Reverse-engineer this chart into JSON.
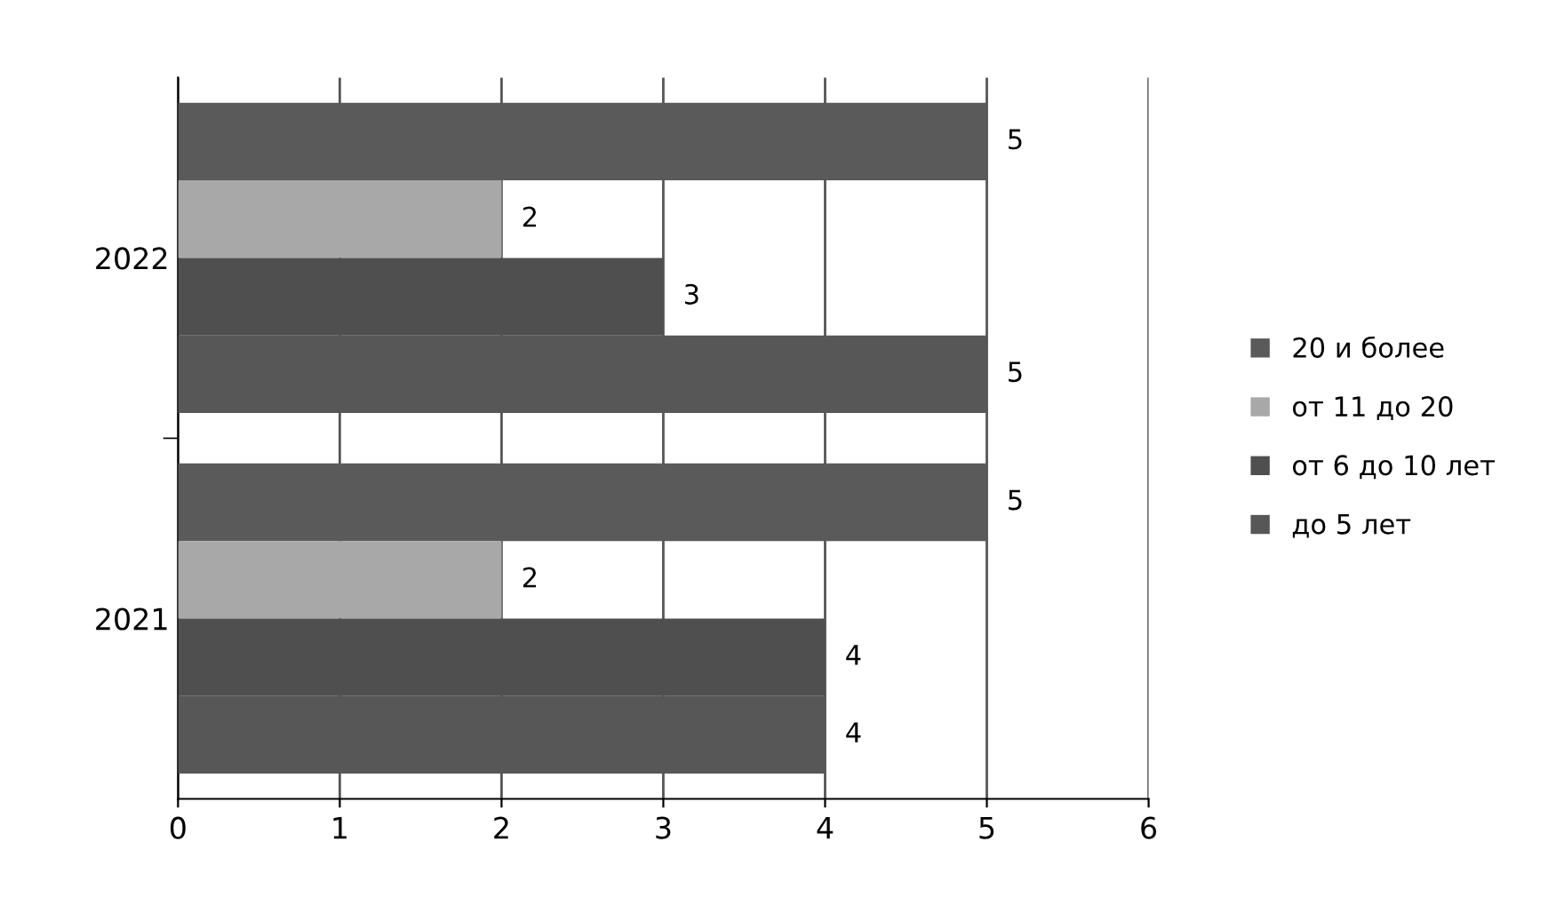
{
  "chart_data": {
    "type": "bar",
    "orientation": "horizontal",
    "categories": [
      "2022",
      "2021"
    ],
    "series": [
      {
        "name": "20 и более",
        "color": "#5a5a5a",
        "values": [
          5,
          5
        ]
      },
      {
        "name": "от 11 до 20",
        "color": "#a8a8a8",
        "values": [
          2,
          2
        ]
      },
      {
        "name": "от 6 до 10 лет",
        "color": "#4f4f4f",
        "values": [
          3,
          4
        ]
      },
      {
        "name": "до 5 лет",
        "color": "#575757",
        "values": [
          5,
          4
        ]
      }
    ],
    "xlim": [
      0,
      6
    ],
    "xticks": [
      0,
      1,
      2,
      3,
      4,
      5,
      6
    ],
    "grid": "x",
    "legend": "right",
    "data_labels": true
  }
}
